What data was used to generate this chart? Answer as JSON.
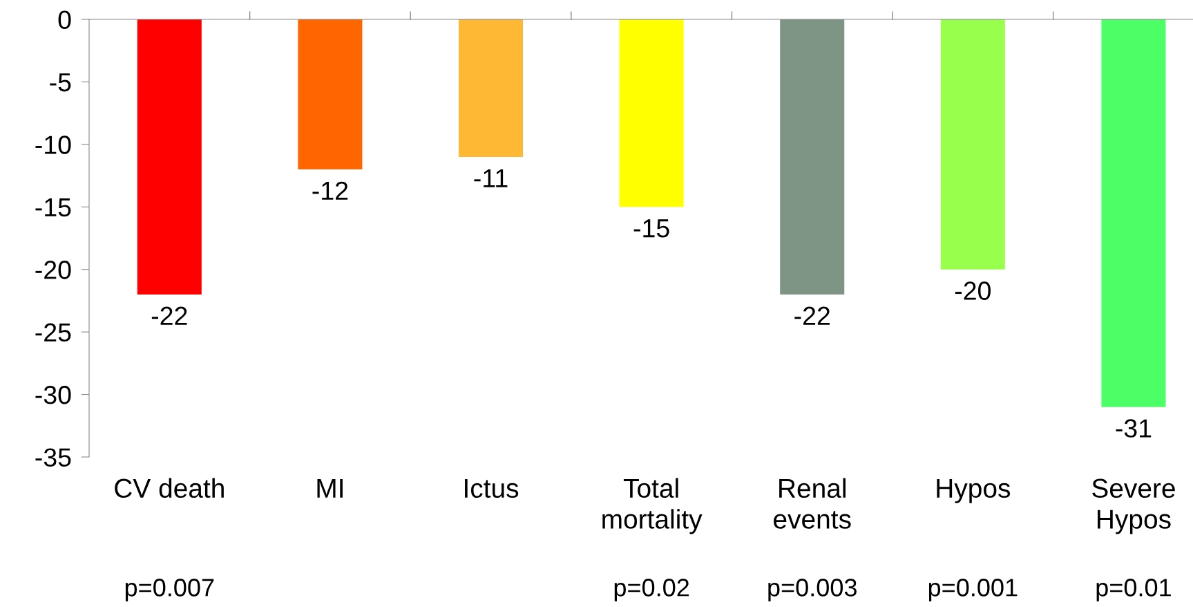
{
  "chart_data": {
    "type": "bar",
    "categories": [
      "CV death",
      "MI",
      "Ictus",
      "Total\nmortality",
      "Renal\nevents",
      "Hypos",
      "Severe\nHypos"
    ],
    "values": [
      -22,
      -12,
      -11,
      -15,
      -22,
      -20,
      -31
    ],
    "colors": [
      "#ff0000",
      "#ff6600",
      "#ffb833",
      "#ffff00",
      "#7e9484",
      "#99ff4d",
      "#4dff66"
    ],
    "ylim": [
      -35,
      0
    ],
    "yticks": [
      0,
      -5,
      -10,
      -15,
      -20,
      -25,
      -30,
      -35
    ],
    "data_labels": true,
    "grid": false,
    "legend": false,
    "annotations": [
      "p=0.007",
      "p=0.02",
      "p=0.003",
      "p=0.001",
      "p=0.01"
    ]
  }
}
